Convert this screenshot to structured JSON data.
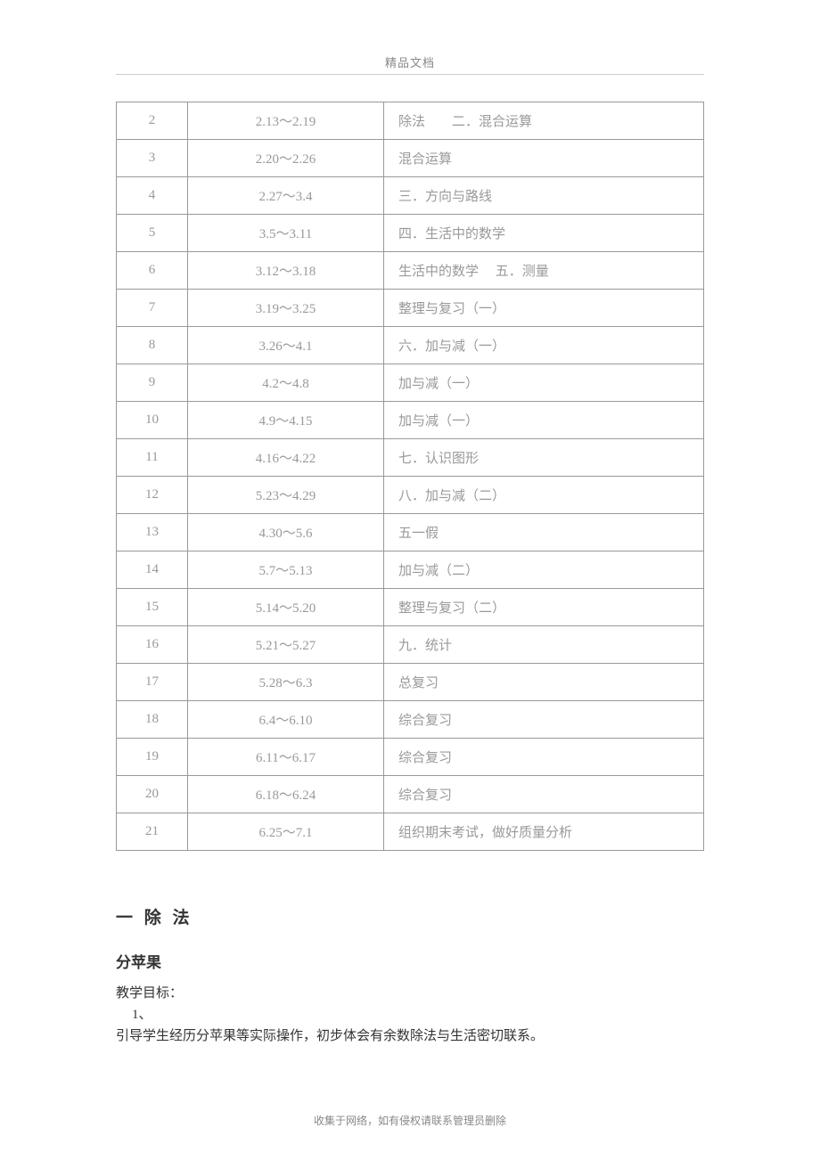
{
  "header": {
    "title": "精品文档"
  },
  "table": {
    "rows": [
      {
        "num": "2",
        "date": "2.13～2.19",
        "content": "除法　　二．混合运算"
      },
      {
        "num": "3",
        "date": "2.20～2.26",
        "content": "混合运算"
      },
      {
        "num": "4",
        "date": "2.27～3.4",
        "content": "三．方向与路线"
      },
      {
        "num": "5",
        "date": "3.5～3.11",
        "content": "四．生活中的数学"
      },
      {
        "num": "6",
        "date": "3.12～3.18",
        "content": "生活中的数学　 五．测量"
      },
      {
        "num": "7",
        "date": "3.19～3.25",
        "content": "整理与复习（一）"
      },
      {
        "num": "8",
        "date": "3.26～4.1",
        "content": "六．加与减（一）"
      },
      {
        "num": "9",
        "date": "4.2～4.8",
        "content": "加与减（一）"
      },
      {
        "num": "10",
        "date": "4.9～4.15",
        "content": "加与减（一）"
      },
      {
        "num": "11",
        "date": "4.16～4.22",
        "content": "七．认识图形"
      },
      {
        "num": "12",
        "date": "5.23～4.29",
        "content": "八．加与减（二）"
      },
      {
        "num": "13",
        "date": "4.30～5.6",
        "content": "五一假"
      },
      {
        "num": "14",
        "date": "5.7～5.13",
        "content": "加与减（二）"
      },
      {
        "num": "15",
        "date": "5.14～5.20",
        "content": "整理与复习（二）"
      },
      {
        "num": "16",
        "date": "5.21～5.27",
        "content": "九．统计"
      },
      {
        "num": "17",
        "date": "5.28～6.3",
        "content": "总复习"
      },
      {
        "num": "18",
        "date": "6.4～6.10",
        "content": "综合复习"
      },
      {
        "num": "19",
        "date": "6.11～6.17",
        "content": "综合复习"
      },
      {
        "num": "20",
        "date": "6.18～6.24",
        "content": "综合复习"
      },
      {
        "num": "21",
        "date": "6.25～7.1",
        "content": "组织期末考试，做好质量分析"
      }
    ]
  },
  "content": {
    "section_title": "一  除  法",
    "sub_title": "分苹果",
    "goal_label": "教学目标：",
    "list_item_1": "1、",
    "paragraph": "引导学生经历分苹果等实际操作，初步体会有余数除法与生活密切联系。"
  },
  "footer": {
    "text": "收集于网络，如有侵权请联系管理员删除"
  }
}
